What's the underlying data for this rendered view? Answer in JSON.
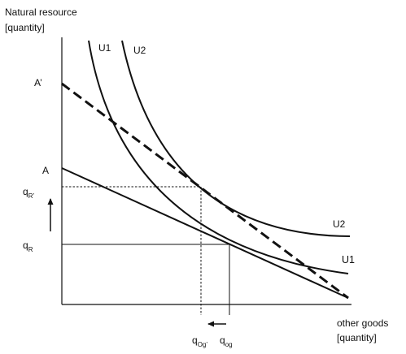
{
  "y_axis": {
    "title": "Natural resource",
    "unit": "[quantity]"
  },
  "x_axis": {
    "title": "other goods",
    "unit": "[quantity]"
  },
  "curve_labels": {
    "u1_top": "U1",
    "u2_top": "U2",
    "u2_right": "U2",
    "u1_right": "U1"
  },
  "intercept_labels": {
    "a_prime": "A’",
    "a": "A"
  },
  "y_markers": {
    "q_r_prime": {
      "base": "q",
      "sub": "R’"
    },
    "q_r": {
      "base": "q",
      "sub": "R"
    }
  },
  "x_markers": {
    "q_og_prime": {
      "base": "q",
      "sub": "Og’"
    },
    "q_og": {
      "base": "q",
      "sub": "og"
    }
  },
  "colors": {
    "line": "#111111",
    "background": "#ffffff"
  },
  "arrows": {
    "vertical": "up",
    "horizontal": "left"
  }
}
